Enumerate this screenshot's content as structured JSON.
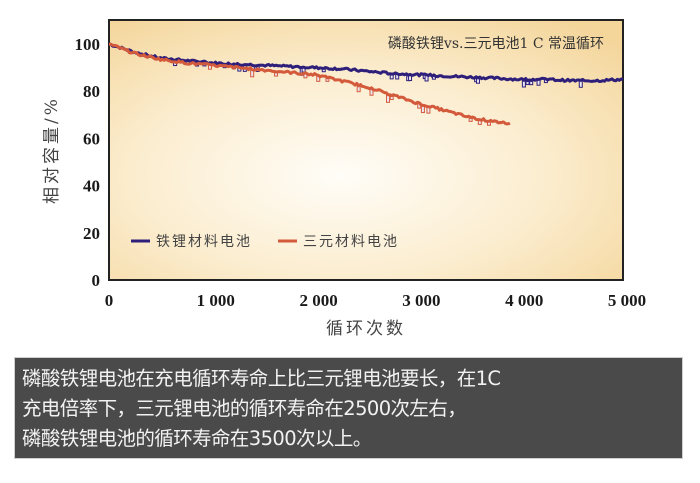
{
  "chart_data": {
    "type": "line",
    "title": "磷酸铁锂vs.三元电池1 C 常温循环",
    "xlabel": "循环次数",
    "ylabel": "相对容量/%",
    "xlim": [
      0,
      5000
    ],
    "ylim": [
      0,
      100
    ],
    "x_ticks": [
      "0",
      "1 000",
      "2 000",
      "3 000",
      "4 000",
      "5 000"
    ],
    "y_ticks": [
      "0",
      "20",
      "40",
      "60",
      "80",
      "100"
    ],
    "grid": false,
    "legend_position": "lower-left inside plot",
    "series": [
      {
        "name": "铁锂材料电池",
        "color": "#2e1f7a",
        "x": [
          0,
          250,
          500,
          750,
          1000,
          1250,
          1500,
          1750,
          2000,
          2250,
          2500,
          2750,
          3000,
          3250,
          3500,
          3750,
          4000,
          4250,
          4500,
          4750,
          5000
        ],
        "y": [
          100,
          96.5,
          94,
          93,
          92,
          91.5,
          91,
          90.5,
          90,
          89.5,
          88.5,
          87.5,
          87,
          86.5,
          86,
          85.5,
          85,
          85,
          84.5,
          84.5,
          85
        ]
      },
      {
        "name": "三元材料电池",
        "color": "#d45a3c",
        "x": [
          0,
          250,
          500,
          750,
          1000,
          1250,
          1500,
          1750,
          2000,
          2250,
          2500,
          2750,
          3000,
          3250,
          3500,
          3750,
          3900
        ],
        "y": [
          100,
          96,
          93.5,
          92,
          91,
          90,
          89,
          88,
          87,
          84.5,
          82,
          78.5,
          75,
          72,
          69,
          67,
          66.5
        ]
      }
    ]
  },
  "chart": {
    "title": "磷酸铁锂vs.三元电池1 C 常温循环",
    "xlabel": "循环次数",
    "ylabel": "相对容量/%",
    "x_ticks": [
      "0",
      "1 000",
      "2 000",
      "3 000",
      "4 000",
      "5 000"
    ],
    "y_ticks": [
      "0",
      "20",
      "40",
      "60",
      "80",
      "100"
    ],
    "legend": [
      {
        "label": "铁锂材料电池",
        "color": "#2e1f7a"
      },
      {
        "label": "三元材料电池",
        "color": "#d45a3c"
      }
    ]
  },
  "caption": {
    "lines": [
      "磷酸铁锂电池在充电循环寿命上比三元锂电池要长，在1C",
      "充电倍率下，三元锂电池的循环寿命在2500次左右，",
      "磷酸铁锂电池的循环寿命在3500次以上。"
    ]
  }
}
